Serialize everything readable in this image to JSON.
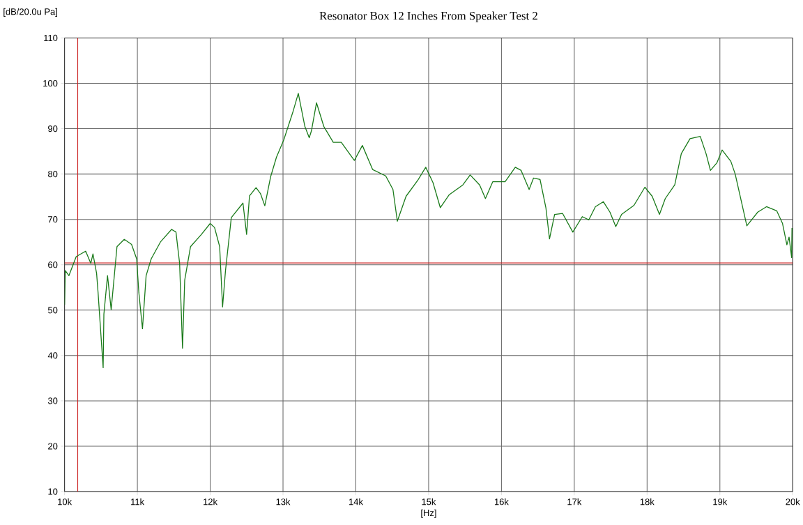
{
  "chart_data": {
    "type": "line",
    "title": "Resonator Box 12 Inches From Speaker Test 2",
    "xlabel": "[Hz]",
    "ylabel": "[dB/20.0u Pa]",
    "xlim": [
      10000,
      20000
    ],
    "ylim": [
      10,
      110
    ],
    "xticks": [
      {
        "value": 10000,
        "label": "10k"
      },
      {
        "value": 11000,
        "label": "11k"
      },
      {
        "value": 12000,
        "label": "12k"
      },
      {
        "value": 13000,
        "label": "13k"
      },
      {
        "value": 14000,
        "label": "14k"
      },
      {
        "value": 15000,
        "label": "15k"
      },
      {
        "value": 16000,
        "label": "16k"
      },
      {
        "value": 17000,
        "label": "17k"
      },
      {
        "value": 18000,
        "label": "18k"
      },
      {
        "value": 19000,
        "label": "19k"
      },
      {
        "value": 20000,
        "label": "20k"
      }
    ],
    "yticks": [
      10,
      20,
      30,
      40,
      50,
      60,
      70,
      80,
      90,
      100,
      110
    ],
    "grid": true,
    "ref_lines": [
      {
        "axis": "x",
        "value": 10180,
        "color": "#cc2222"
      },
      {
        "axis": "y",
        "value": 60.4,
        "color": "#cc2222"
      }
    ],
    "series": [
      {
        "color": "#1a7a1a",
        "x": [
          10000,
          10010,
          10060,
          10160,
          10290,
          10360,
          10390,
          10440,
          10460,
          10530,
          10540,
          10590,
          10640,
          10720,
          10820,
          10920,
          10990,
          11020,
          11070,
          11120,
          11190,
          11320,
          11470,
          11530,
          11580,
          11620,
          11650,
          11730,
          11880,
          12000,
          12060,
          12130,
          12170,
          12210,
          12290,
          12450,
          12500,
          12540,
          12630,
          12690,
          12750,
          12830,
          12910,
          13010,
          13140,
          13210,
          13300,
          13360,
          13390,
          13460,
          13560,
          13690,
          13800,
          13980,
          14090,
          14230,
          14410,
          14510,
          14570,
          14690,
          14850,
          14960,
          15060,
          15160,
          15280,
          15470,
          15570,
          15700,
          15780,
          15880,
          16050,
          16190,
          16270,
          16380,
          16440,
          16530,
          16610,
          16660,
          16730,
          16840,
          16980,
          17110,
          17200,
          17290,
          17400,
          17490,
          17570,
          17650,
          17820,
          17970,
          18070,
          18170,
          18250,
          18380,
          18470,
          18590,
          18730,
          18810,
          18870,
          18960,
          19030,
          19150,
          19210,
          19370,
          19520,
          19640,
          19780,
          19860,
          19920,
          19950,
          19985,
          19990
        ],
        "values": [
          51.2,
          58.7,
          57.6,
          61.8,
          63.0,
          60.3,
          62.4,
          58.1,
          53.9,
          37.3,
          49.1,
          57.6,
          50.1,
          64.0,
          65.6,
          64.5,
          61.3,
          53.9,
          45.9,
          57.6,
          61.3,
          65.1,
          67.8,
          67.2,
          60.3,
          41.6,
          56.6,
          64.0,
          66.7,
          69.1,
          68.2,
          64.0,
          50.7,
          58.7,
          70.4,
          73.6,
          66.7,
          75.2,
          77.0,
          75.7,
          73.0,
          79.4,
          83.7,
          87.5,
          93.9,
          97.8,
          90.5,
          88.0,
          89.5,
          95.7,
          90.5,
          87.0,
          87.0,
          83.0,
          86.3,
          81.0,
          79.6,
          76.6,
          69.6,
          75.1,
          78.6,
          81.5,
          78.1,
          72.6,
          75.4,
          77.6,
          79.8,
          77.6,
          74.6,
          78.3,
          78.3,
          81.5,
          80.8,
          76.6,
          79.1,
          78.8,
          72.6,
          65.7,
          71.1,
          71.3,
          67.2,
          70.6,
          69.9,
          72.8,
          73.9,
          71.6,
          68.4,
          71.1,
          73.1,
          77.1,
          75.1,
          71.1,
          74.6,
          77.6,
          84.5,
          87.8,
          88.3,
          84.5,
          80.8,
          82.5,
          85.3,
          82.8,
          80.0,
          68.6,
          71.6,
          72.8,
          71.9,
          69.1,
          64.4,
          66.1,
          61.6,
          68.1
        ]
      }
    ]
  }
}
